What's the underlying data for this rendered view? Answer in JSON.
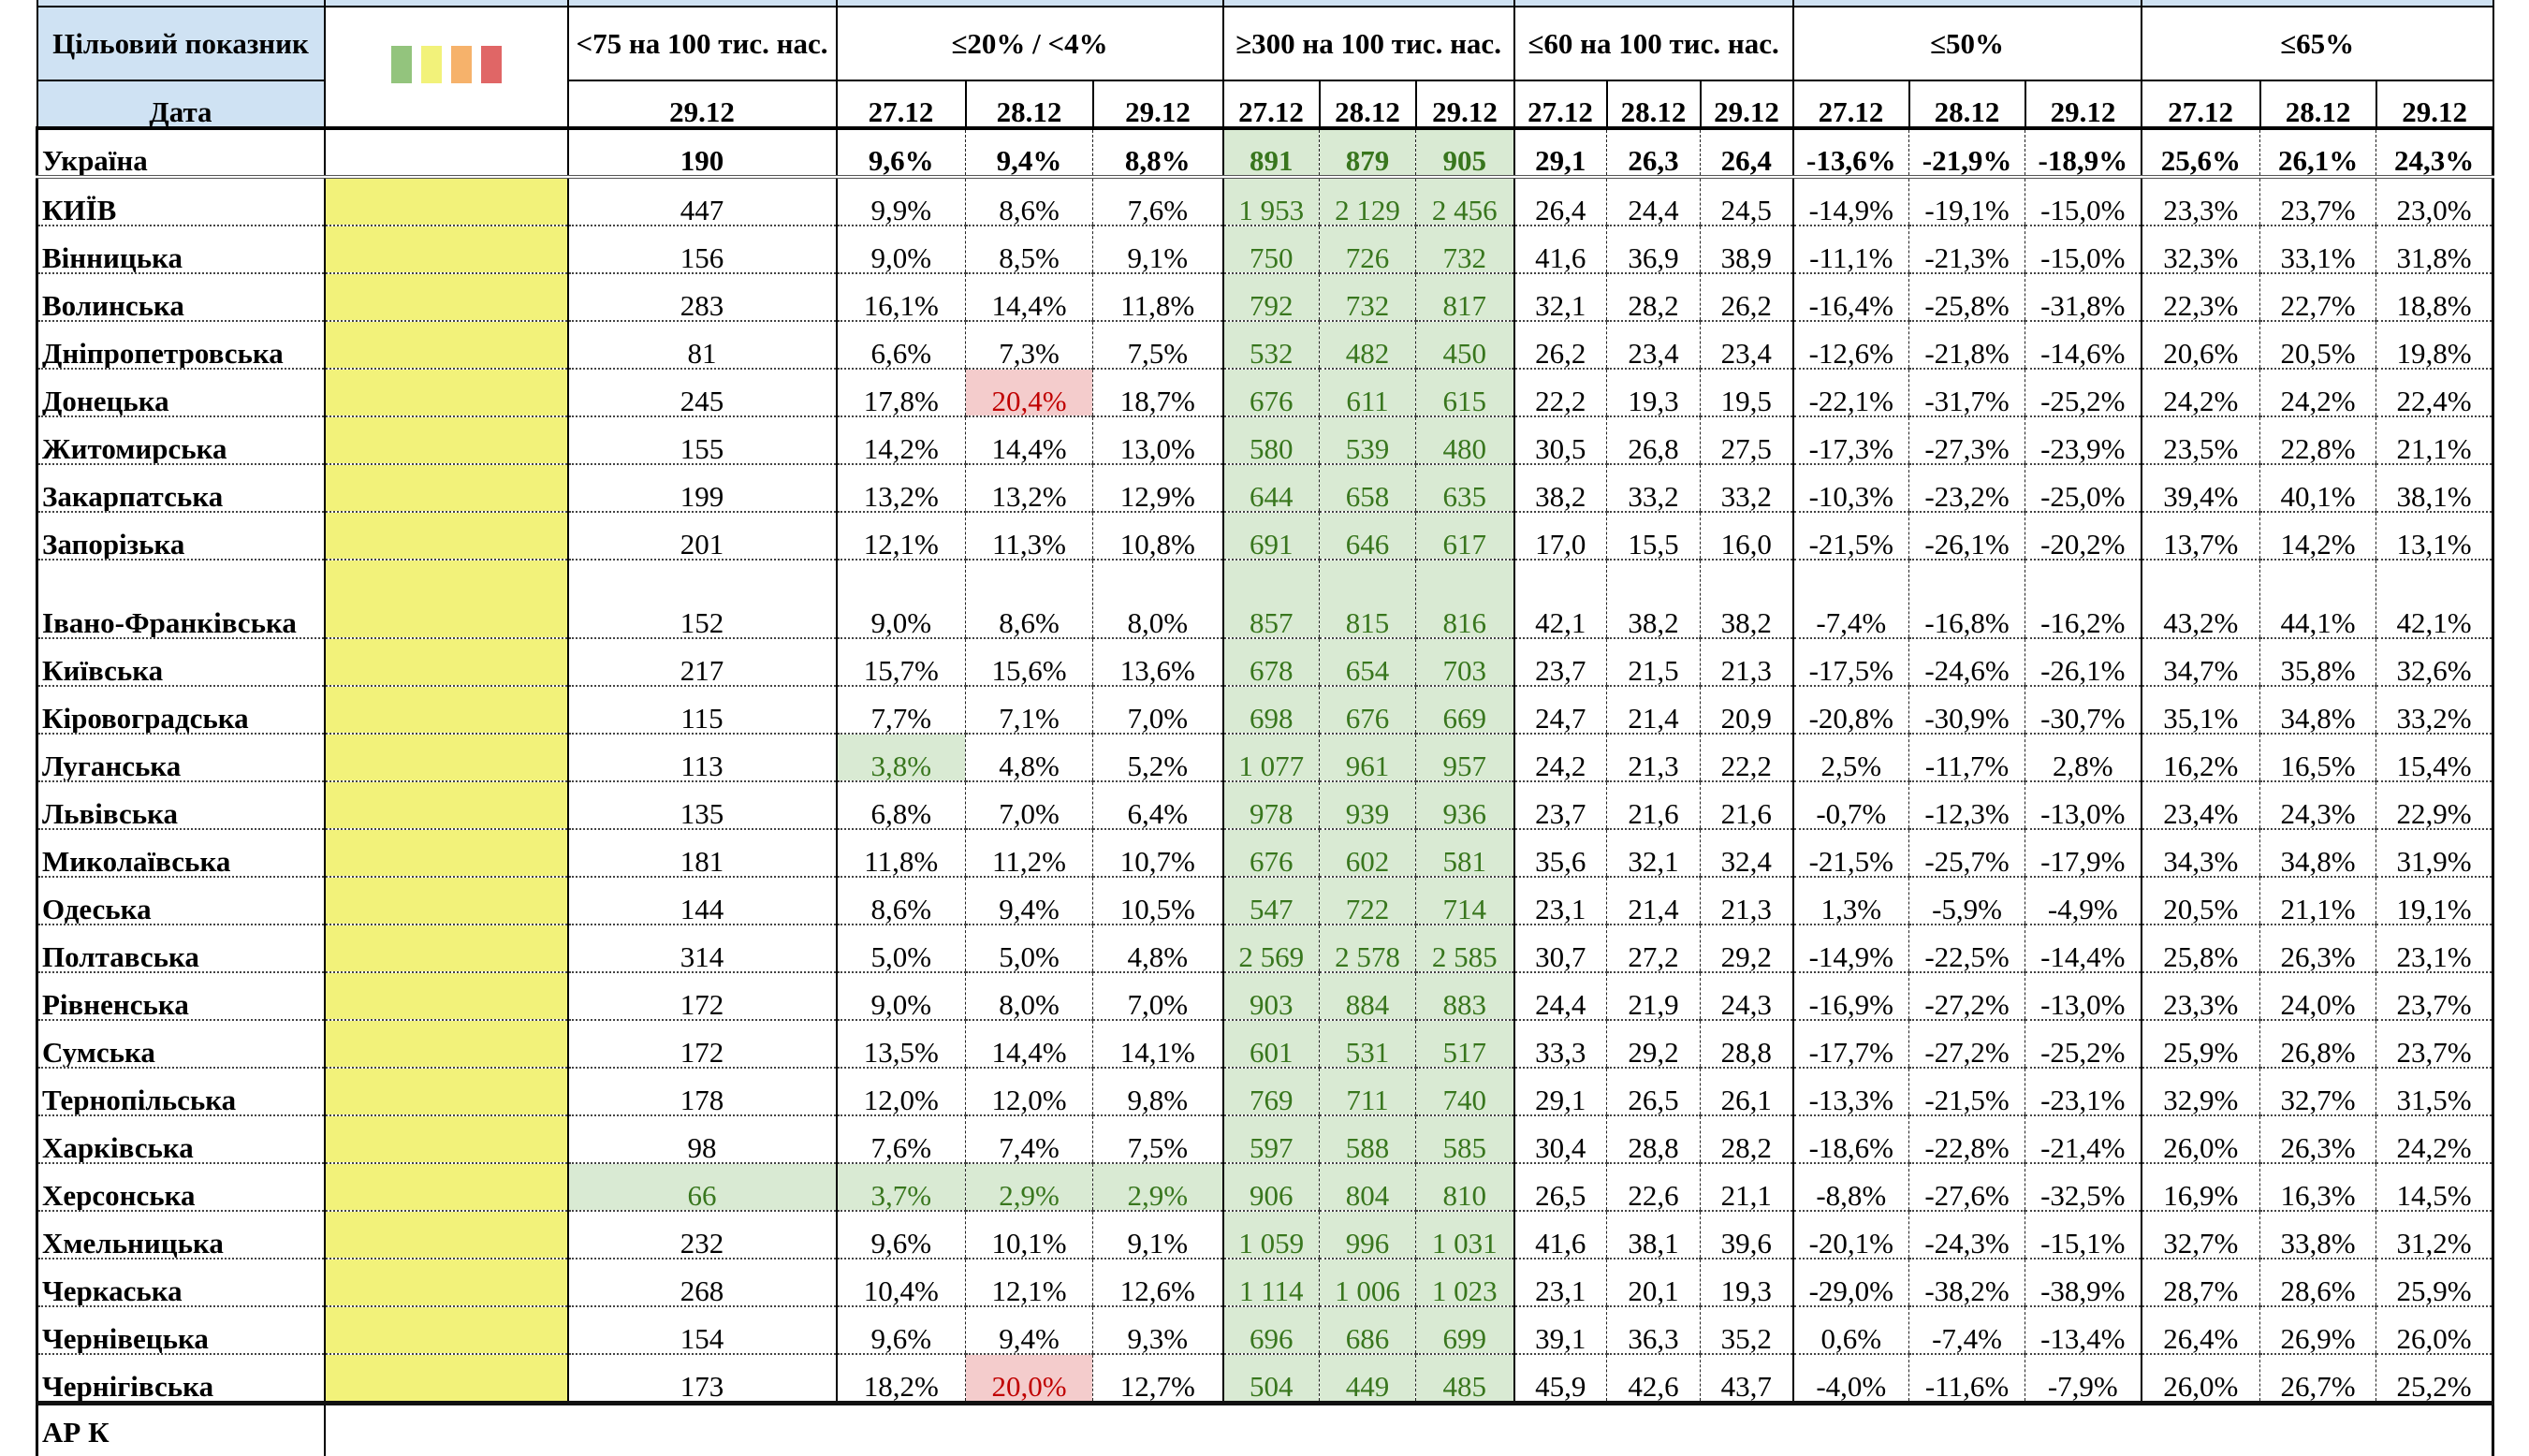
{
  "header": {
    "target_label": "Цільовий показник",
    "date_label": "Дата",
    "legend_colors": [
      "#93c47d",
      "#f2f27a",
      "#f6b26b",
      "#e06666"
    ],
    "groups": [
      {
        "label": "<75 на 100 тис. нас.",
        "dates": [
          "29.12"
        ]
      },
      {
        "label": "≤20% / <4%",
        "dates": [
          "27.12",
          "28.12",
          "29.12"
        ]
      },
      {
        "label": "≥300 на 100 тис. нас.",
        "dates": [
          "27.12",
          "28.12",
          "29.12"
        ]
      },
      {
        "label": "≤60 на 100 тис. нас.",
        "dates": [
          "27.12",
          "28.12",
          "29.12"
        ]
      },
      {
        "label": "≤50%",
        "dates": [
          "27.12",
          "28.12",
          "29.12"
        ]
      },
      {
        "label": "≤65%",
        "dates": [
          "27.12",
          "28.12",
          "29.12"
        ]
      }
    ]
  },
  "colors": {
    "status_yellow": "#f2f27a",
    "good_bg": "#d9ead3",
    "good_text": "#38761d",
    "bad_bg": "#f4cccc",
    "bad_text": "#c00000",
    "header_bg": "#cfe2f3"
  },
  "ukraine": {
    "name": "Україна",
    "values": [
      "190",
      "9,6%",
      "9,4%",
      "8,8%",
      "891",
      "879",
      "905",
      "29,1",
      "26,3",
      "26,4",
      "-13,6%",
      "-21,9%",
      "-18,9%",
      "25,6%",
      "26,1%",
      "24,3%"
    ],
    "green": [
      4,
      5,
      6
    ],
    "red": []
  },
  "rows": [
    {
      "name": "КИЇВ",
      "values": [
        "447",
        "9,9%",
        "8,6%",
        "7,6%",
        "1 953",
        "2 129",
        "2 456",
        "26,4",
        "24,4",
        "24,5",
        "-14,9%",
        "-19,1%",
        "-15,0%",
        "23,3%",
        "23,7%",
        "23,0%"
      ],
      "green": [
        4,
        5,
        6
      ],
      "red": []
    },
    {
      "name": "Вінницька",
      "values": [
        "156",
        "9,0%",
        "8,5%",
        "9,1%",
        "750",
        "726",
        "732",
        "41,6",
        "36,9",
        "38,9",
        "-11,1%",
        "-21,3%",
        "-15,0%",
        "32,3%",
        "33,1%",
        "31,8%"
      ],
      "green": [
        4,
        5,
        6
      ],
      "red": []
    },
    {
      "name": "Волинська",
      "values": [
        "283",
        "16,1%",
        "14,4%",
        "11,8%",
        "792",
        "732",
        "817",
        "32,1",
        "28,2",
        "26,2",
        "-16,4%",
        "-25,8%",
        "-31,8%",
        "22,3%",
        "22,7%",
        "18,8%"
      ],
      "green": [
        4,
        5,
        6
      ],
      "red": []
    },
    {
      "name": "Дніпропетровська",
      "values": [
        "81",
        "6,6%",
        "7,3%",
        "7,5%",
        "532",
        "482",
        "450",
        "26,2",
        "23,4",
        "23,4",
        "-12,6%",
        "-21,8%",
        "-14,6%",
        "20,6%",
        "20,5%",
        "19,8%"
      ],
      "green": [
        4,
        5,
        6
      ],
      "red": []
    },
    {
      "name": "Донецька",
      "values": [
        "245",
        "17,8%",
        "20,4%",
        "18,7%",
        "676",
        "611",
        "615",
        "22,2",
        "19,3",
        "19,5",
        "-22,1%",
        "-31,7%",
        "-25,2%",
        "24,2%",
        "24,2%",
        "22,4%"
      ],
      "green": [
        4,
        5,
        6
      ],
      "red": [
        2
      ]
    },
    {
      "name": "Житомирська",
      "values": [
        "155",
        "14,2%",
        "14,4%",
        "13,0%",
        "580",
        "539",
        "480",
        "30,5",
        "26,8",
        "27,5",
        "-17,3%",
        "-27,3%",
        "-23,9%",
        "23,5%",
        "22,8%",
        "21,1%"
      ],
      "green": [
        4,
        5,
        6
      ],
      "red": []
    },
    {
      "name": "Закарпатська",
      "values": [
        "199",
        "13,2%",
        "13,2%",
        "12,9%",
        "644",
        "658",
        "635",
        "38,2",
        "33,2",
        "33,2",
        "-10,3%",
        "-23,2%",
        "-25,0%",
        "39,4%",
        "40,1%",
        "38,1%"
      ],
      "green": [
        4,
        5,
        6
      ],
      "red": []
    },
    {
      "name": "Запорізька",
      "values": [
        "201",
        "12,1%",
        "11,3%",
        "10,8%",
        "691",
        "646",
        "617",
        "17,0",
        "15,5",
        "16,0",
        "-21,5%",
        "-26,1%",
        "-20,2%",
        "13,7%",
        "14,2%",
        "13,1%"
      ],
      "green": [
        4,
        5,
        6
      ],
      "red": []
    },
    {
      "name": "Івано-Франківська",
      "values": [
        "152",
        "9,0%",
        "8,6%",
        "8,0%",
        "857",
        "815",
        "816",
        "42,1",
        "38,2",
        "38,2",
        "-7,4%",
        "-16,8%",
        "-16,2%",
        "43,2%",
        "44,1%",
        "42,1%"
      ],
      "green": [
        4,
        5,
        6
      ],
      "red": [],
      "tall": true
    },
    {
      "name": "Київська",
      "values": [
        "217",
        "15,7%",
        "15,6%",
        "13,6%",
        "678",
        "654",
        "703",
        "23,7",
        "21,5",
        "21,3",
        "-17,5%",
        "-24,6%",
        "-26,1%",
        "34,7%",
        "35,8%",
        "32,6%"
      ],
      "green": [
        4,
        5,
        6
      ],
      "red": []
    },
    {
      "name": "Кіровоградська",
      "values": [
        "115",
        "7,7%",
        "7,1%",
        "7,0%",
        "698",
        "676",
        "669",
        "24,7",
        "21,4",
        "20,9",
        "-20,8%",
        "-30,9%",
        "-30,7%",
        "35,1%",
        "34,8%",
        "33,2%"
      ],
      "green": [
        4,
        5,
        6
      ],
      "red": []
    },
    {
      "name": "Луганська",
      "values": [
        "113",
        "3,8%",
        "4,8%",
        "5,2%",
        "1 077",
        "961",
        "957",
        "24,2",
        "21,3",
        "22,2",
        "2,5%",
        "-11,7%",
        "2,8%",
        "16,2%",
        "16,5%",
        "15,4%"
      ],
      "green": [
        1,
        4,
        5,
        6
      ],
      "red": []
    },
    {
      "name": "Львівська",
      "values": [
        "135",
        "6,8%",
        "7,0%",
        "6,4%",
        "978",
        "939",
        "936",
        "23,7",
        "21,6",
        "21,6",
        "-0,7%",
        "-12,3%",
        "-13,0%",
        "23,4%",
        "24,3%",
        "22,9%"
      ],
      "green": [
        4,
        5,
        6
      ],
      "red": []
    },
    {
      "name": "Миколаївська",
      "values": [
        "181",
        "11,8%",
        "11,2%",
        "10,7%",
        "676",
        "602",
        "581",
        "35,6",
        "32,1",
        "32,4",
        "-21,5%",
        "-25,7%",
        "-17,9%",
        "34,3%",
        "34,8%",
        "31,9%"
      ],
      "green": [
        4,
        5,
        6
      ],
      "red": []
    },
    {
      "name": "Одеська",
      "values": [
        "144",
        "8,6%",
        "9,4%",
        "10,5%",
        "547",
        "722",
        "714",
        "23,1",
        "21,4",
        "21,3",
        "1,3%",
        "-5,9%",
        "-4,9%",
        "20,5%",
        "21,1%",
        "19,1%"
      ],
      "green": [
        4,
        5,
        6
      ],
      "red": []
    },
    {
      "name": "Полтавська",
      "values": [
        "314",
        "5,0%",
        "5,0%",
        "4,8%",
        "2 569",
        "2 578",
        "2 585",
        "30,7",
        "27,2",
        "29,2",
        "-14,9%",
        "-22,5%",
        "-14,4%",
        "25,8%",
        "26,3%",
        "23,1%"
      ],
      "green": [
        4,
        5,
        6
      ],
      "red": []
    },
    {
      "name": "Рівненська",
      "values": [
        "172",
        "9,0%",
        "8,0%",
        "7,0%",
        "903",
        "884",
        "883",
        "24,4",
        "21,9",
        "24,3",
        "-16,9%",
        "-27,2%",
        "-13,0%",
        "23,3%",
        "24,0%",
        "23,7%"
      ],
      "green": [
        4,
        5,
        6
      ],
      "red": []
    },
    {
      "name": "Сумська",
      "values": [
        "172",
        "13,5%",
        "14,4%",
        "14,1%",
        "601",
        "531",
        "517",
        "33,3",
        "29,2",
        "28,8",
        "-17,7%",
        "-27,2%",
        "-25,2%",
        "25,9%",
        "26,8%",
        "23,7%"
      ],
      "green": [
        4,
        5,
        6
      ],
      "red": []
    },
    {
      "name": "Тернопільська",
      "values": [
        "178",
        "12,0%",
        "12,0%",
        "9,8%",
        "769",
        "711",
        "740",
        "29,1",
        "26,5",
        "26,1",
        "-13,3%",
        "-21,5%",
        "-23,1%",
        "32,9%",
        "32,7%",
        "31,5%"
      ],
      "green": [
        4,
        5,
        6
      ],
      "red": []
    },
    {
      "name": "Харківська",
      "values": [
        "98",
        "7,6%",
        "7,4%",
        "7,5%",
        "597",
        "588",
        "585",
        "30,4",
        "28,8",
        "28,2",
        "-18,6%",
        "-22,8%",
        "-21,4%",
        "26,0%",
        "26,3%",
        "24,2%"
      ],
      "green": [
        4,
        5,
        6
      ],
      "red": []
    },
    {
      "name": "Херсонська",
      "values": [
        "66",
        "3,7%",
        "2,9%",
        "2,9%",
        "906",
        "804",
        "810",
        "26,5",
        "22,6",
        "21,1",
        "-8,8%",
        "-27,6%",
        "-32,5%",
        "16,9%",
        "16,3%",
        "14,5%"
      ],
      "green": [
        0,
        1,
        2,
        3,
        4,
        5,
        6
      ],
      "red": []
    },
    {
      "name": "Хмельницька",
      "values": [
        "232",
        "9,6%",
        "10,1%",
        "9,1%",
        "1 059",
        "996",
        "1 031",
        "41,6",
        "38,1",
        "39,6",
        "-20,1%",
        "-24,3%",
        "-15,1%",
        "32,7%",
        "33,8%",
        "31,2%"
      ],
      "green": [
        4,
        5,
        6
      ],
      "red": []
    },
    {
      "name": "Черкаська",
      "values": [
        "268",
        "10,4%",
        "12,1%",
        "12,6%",
        "1 114",
        "1 006",
        "1 023",
        "23,1",
        "20,1",
        "19,3",
        "-29,0%",
        "-38,2%",
        "-38,9%",
        "28,7%",
        "28,6%",
        "25,9%"
      ],
      "green": [
        4,
        5,
        6
      ],
      "red": []
    },
    {
      "name": "Чернівецька",
      "values": [
        "154",
        "9,6%",
        "9,4%",
        "9,3%",
        "696",
        "686",
        "699",
        "39,1",
        "36,3",
        "35,2",
        "0,6%",
        "-7,4%",
        "-13,4%",
        "26,4%",
        "26,9%",
        "26,0%"
      ],
      "green": [
        4,
        5,
        6
      ],
      "red": []
    },
    {
      "name": "Чернігівська",
      "values": [
        "173",
        "18,2%",
        "20,0%",
        "12,7%",
        "504",
        "449",
        "485",
        "45,9",
        "42,6",
        "43,7",
        "-4,0%",
        "-11,6%",
        "-7,9%",
        "26,0%",
        "26,7%",
        "25,2%"
      ],
      "green": [
        4,
        5,
        6
      ],
      "red": [
        2
      ]
    }
  ],
  "footer_partial": "АР К"
}
